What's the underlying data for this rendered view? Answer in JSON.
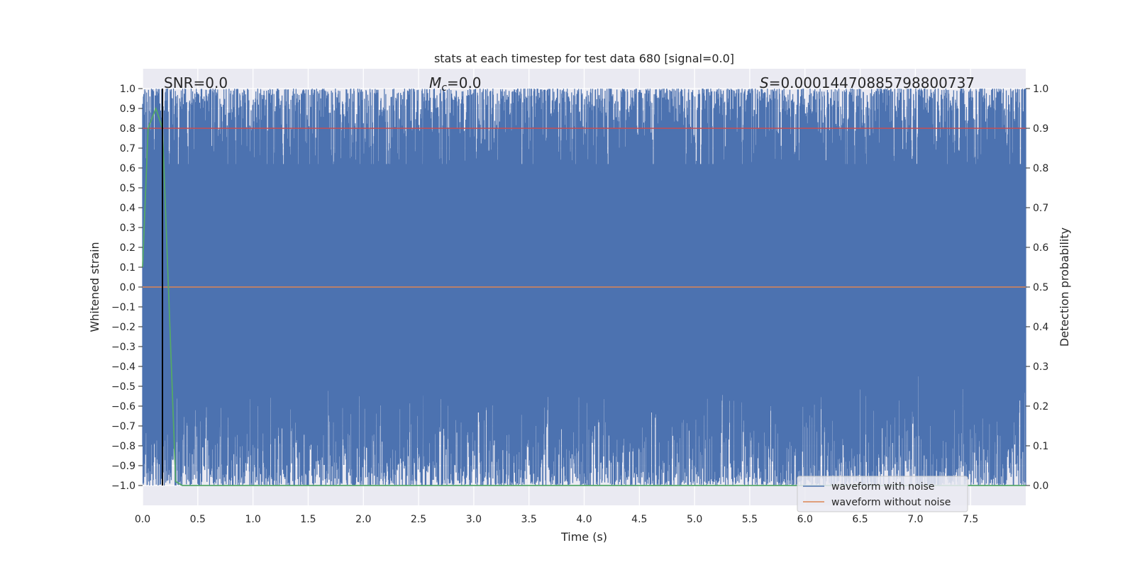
{
  "chart_data": {
    "type": "line",
    "title": "stats at each timestep for test data 680 [signal=0.0]",
    "xlabel": "Time (s)",
    "ylabel": "Whitened strain",
    "y2label": "Detection probability",
    "xlim": [
      0.0,
      8.0
    ],
    "ylim": [
      -1.1,
      1.1
    ],
    "y2lim": [
      -0.05,
      1.05
    ],
    "x_ticks": [
      0.0,
      0.5,
      1.0,
      1.5,
      2.0,
      2.5,
      3.0,
      3.5,
      4.0,
      4.5,
      5.0,
      5.5,
      6.0,
      6.5,
      7.0,
      7.5
    ],
    "x_tick_labels": [
      "0.0",
      "0.5",
      "1.0",
      "1.5",
      "2.0",
      "2.5",
      "3.0",
      "3.5",
      "4.0",
      "4.5",
      "5.0",
      "5.5",
      "6.0",
      "6.5",
      "7.0",
      "7.5"
    ],
    "y_ticks": [
      1.0,
      0.9,
      0.8,
      0.7,
      0.6,
      0.5,
      0.4,
      0.3,
      0.2,
      0.1,
      0.0,
      -0.1,
      -0.2,
      -0.3,
      -0.4,
      -0.5,
      -0.6,
      -0.7,
      -0.8,
      -0.9,
      -1.0
    ],
    "y_tick_labels": [
      "1.0",
      "0.9",
      "0.8",
      "0.7",
      "0.6",
      "0.5",
      "0.4",
      "0.3",
      "0.2",
      "0.1",
      "0.0",
      "−0.1",
      "−0.2",
      "−0.3",
      "−0.4",
      "−0.5",
      "−0.6",
      "−0.7",
      "−0.8",
      "−0.9",
      "−1.0"
    ],
    "y2_ticks": [
      1.0,
      0.9,
      0.8,
      0.7,
      0.6,
      0.5,
      0.4,
      0.3,
      0.2,
      0.1,
      0.0
    ],
    "y2_tick_labels": [
      "1.0",
      "0.9",
      "0.8",
      "0.7",
      "0.6",
      "0.5",
      "0.4",
      "0.3",
      "0.2",
      "0.1",
      "0.0"
    ],
    "grid": true,
    "annotations": {
      "snr": "SNR=0.0",
      "mc_symbol": "M",
      "mc_sub": "c",
      "mc_value": "=0.0",
      "s_symbol": "S",
      "s_value": "=0.00014470885798800737"
    },
    "marker_line_x": 0.18,
    "threshold_y2": 0.9,
    "series": [
      {
        "name": "waveform with noise",
        "color": "#4c72b0",
        "style": "dense noise oscillating between about -1.0 and 1.0",
        "y_range": [
          -1.0,
          1.0
        ],
        "x_range": [
          0.0,
          8.0
        ]
      },
      {
        "name": "waveform without noise",
        "color": "#dd8452",
        "style": "flat line",
        "x": [
          0.0,
          8.0
        ],
        "y": [
          0.0,
          0.0
        ]
      },
      {
        "color": "#55a868",
        "axis": "right",
        "x": [
          0.0,
          0.05,
          0.12,
          0.18,
          0.3,
          0.36,
          8.0
        ],
        "y": [
          0.55,
          0.9,
          0.95,
          0.9,
          0.01,
          0.0,
          0.0
        ]
      }
    ],
    "legend": {
      "placement": "lower-right",
      "entries": [
        "waveform with noise",
        "waveform without noise"
      ]
    }
  }
}
